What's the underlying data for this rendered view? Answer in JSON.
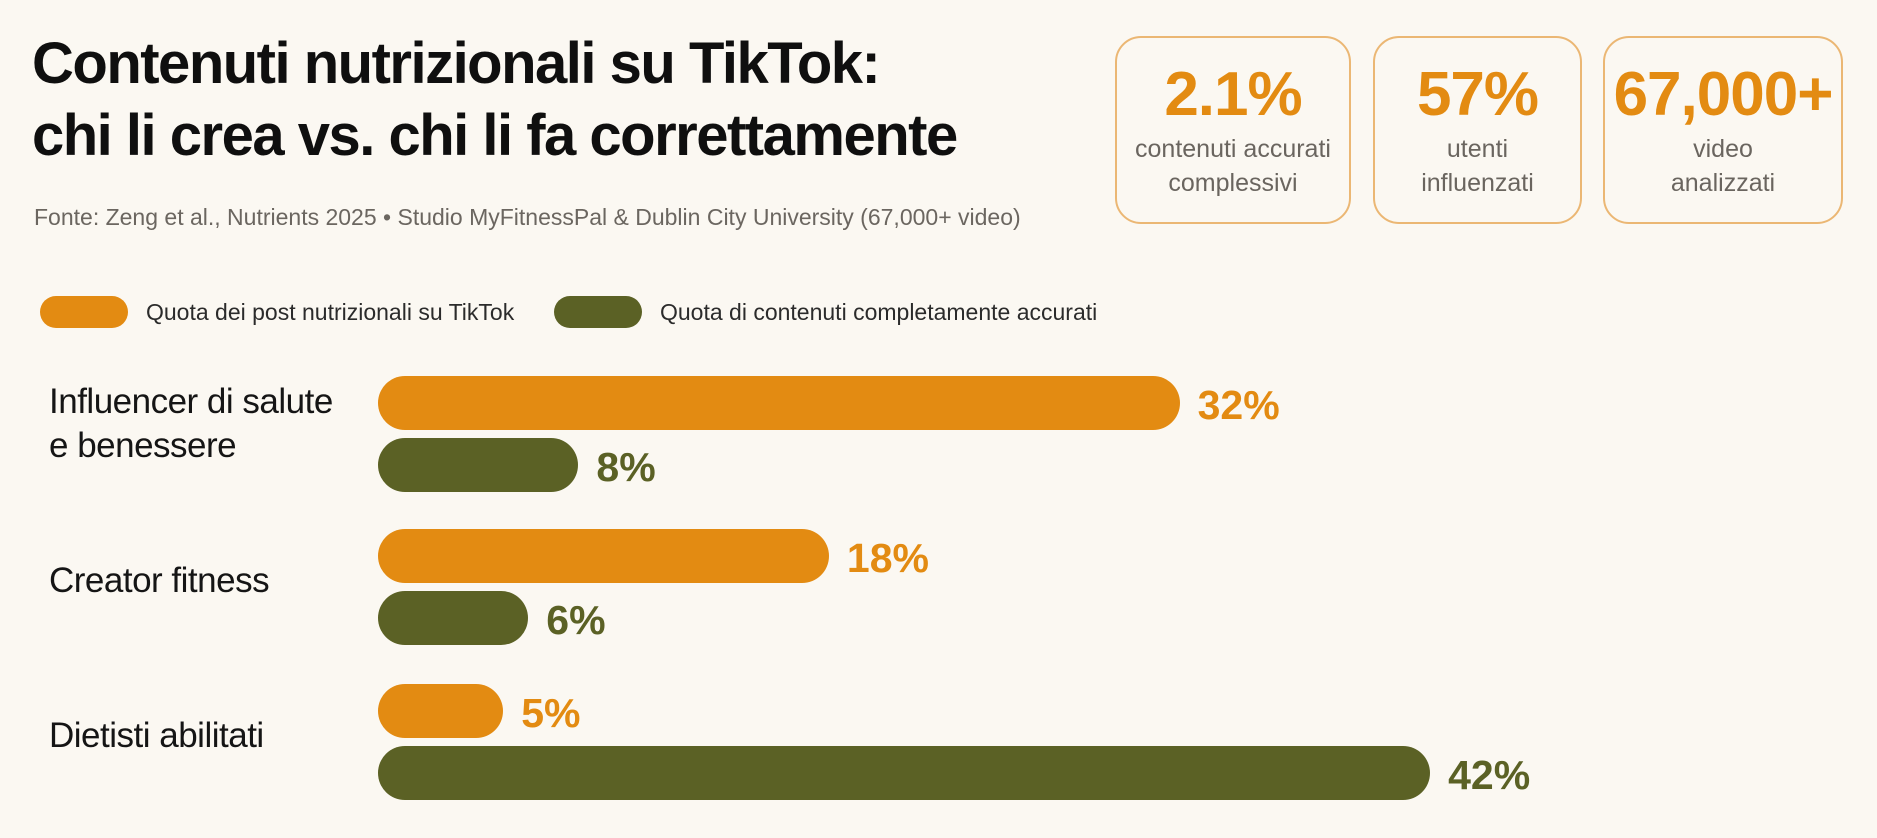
{
  "header": {
    "title_line1": "Contenuti nutrizionali su TikTok:",
    "title_line2": "chi li crea vs. chi li fa correttamente",
    "source": "Fonte: Zeng et al., Nutrients 2025 • Studio MyFitnessPal & Dublin City University (67,000+ video)"
  },
  "stats": [
    {
      "value": "2.1%",
      "label_line1": "contenuti accurati",
      "label_line2": "complessivi"
    },
    {
      "value": "57%",
      "label_line1": "utenti",
      "label_line2": "influenzati"
    },
    {
      "value": "67,000+",
      "label_line1": "video",
      "label_line2": "analizzati"
    }
  ],
  "colors": {
    "series_share": "#e38b12",
    "series_accurate": "#5b6125",
    "background": "#fbf8f2",
    "card_border": "#ebb774"
  },
  "chart_data": {
    "type": "bar",
    "orientation": "horizontal",
    "categories": [
      [
        "Influencer di salute",
        "e benessere"
      ],
      [
        "Creator fitness"
      ],
      [
        "Dietisti abilitati"
      ]
    ],
    "series": [
      {
        "name": "Quota dei post nutrizionali su TikTok",
        "values": [
          32,
          18,
          5
        ],
        "labels": [
          "32%",
          "18%",
          "5%"
        ]
      },
      {
        "name": "Quota di contenuti completamente accurati",
        "values": [
          8,
          6,
          42
        ],
        "labels": [
          "8%",
          "6%",
          "42%"
        ]
      }
    ],
    "unit": "%",
    "legend_position": "top-left",
    "grid": false
  }
}
